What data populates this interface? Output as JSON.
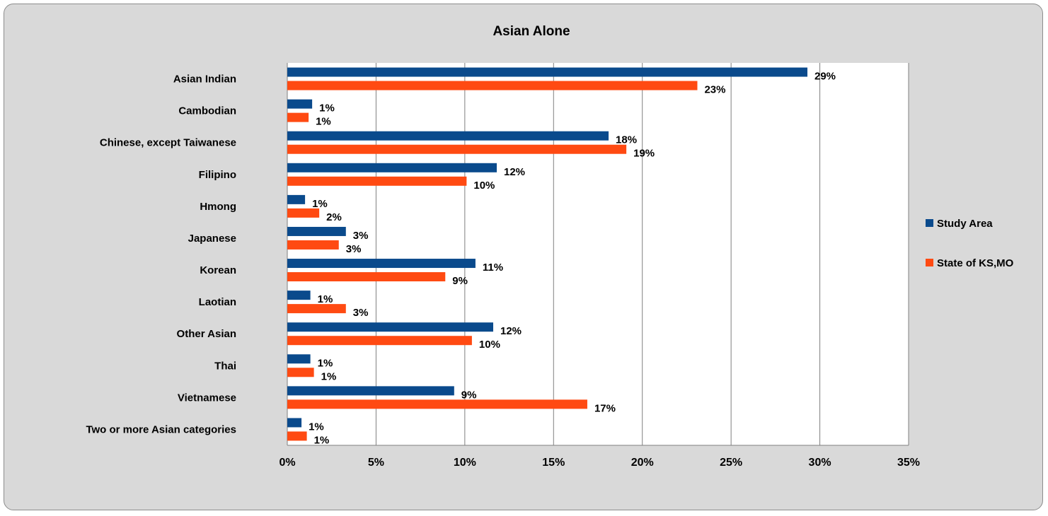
{
  "chart_data": {
    "type": "bar",
    "orientation": "horizontal",
    "title": "Asian Alone",
    "categories": [
      "Asian Indian",
      "Cambodian",
      "Chinese, except Taiwanese",
      "Filipino",
      "Hmong",
      "Japanese",
      "Korean",
      "Laotian",
      "Other Asian",
      "Thai",
      "Vietnamese",
      "Two or more Asian categories"
    ],
    "series": [
      {
        "name": "Study Area",
        "color": "#0a4a8c",
        "values": [
          29.3,
          1.4,
          18.1,
          11.8,
          1.0,
          3.3,
          10.6,
          1.3,
          11.6,
          1.3,
          9.4,
          0.8
        ],
        "labels": [
          "29%",
          "1%",
          "18%",
          "12%",
          "1%",
          "3%",
          "11%",
          "1%",
          "12%",
          "1%",
          "9%",
          "1%"
        ]
      },
      {
        "name": "State of KS,MO",
        "color": "#ff4a12",
        "values": [
          23.1,
          1.2,
          19.1,
          10.1,
          1.8,
          2.9,
          8.9,
          3.3,
          10.4,
          1.5,
          16.9,
          1.1
        ],
        "labels": [
          "23%",
          "1%",
          "19%",
          "10%",
          "2%",
          "3%",
          "9%",
          "3%",
          "10%",
          "1%",
          "17%",
          "1%"
        ]
      }
    ],
    "xlim": [
      0,
      35
    ],
    "xticks": [
      0,
      5,
      10,
      15,
      20,
      25,
      30,
      35
    ],
    "xtick_labels": [
      "0%",
      "5%",
      "10%",
      "15%",
      "20%",
      "25%",
      "30%",
      "35%"
    ],
    "grid": "vertical",
    "legend_position": "right"
  }
}
